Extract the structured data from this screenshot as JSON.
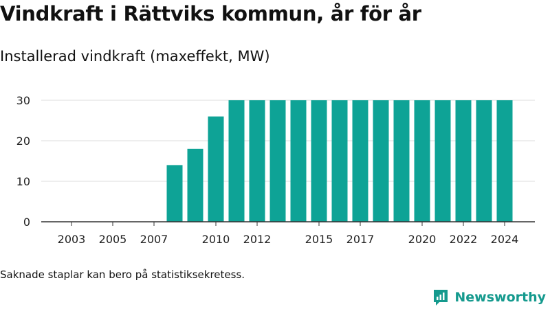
{
  "title": "Vindkraft i Rättviks kommun, år för år",
  "subtitle": "Installerad vindkraft (maxeffekt, MW)",
  "footnote": "Saknade staplar kan bero på statistiksekretess.",
  "brand": {
    "name": "Newsworthy",
    "icon": "newsworthy-logo-icon"
  },
  "colors": {
    "bar": "#0ea396",
    "grid": "#dddddd",
    "axis": "#333333",
    "brand": "#159a8e"
  },
  "chart_data": {
    "type": "bar",
    "categories": [
      "2002",
      "2003",
      "2004",
      "2005",
      "2006",
      "2007",
      "2008",
      "2009",
      "2010",
      "2011",
      "2012",
      "2013",
      "2014",
      "2015",
      "2016",
      "2017",
      "2018",
      "2019",
      "2020",
      "2021",
      "2022",
      "2023",
      "2024"
    ],
    "values": [
      0,
      0,
      0,
      0,
      0,
      0,
      14,
      18,
      26,
      30,
      30,
      30,
      30,
      30,
      30,
      30,
      30,
      30,
      30,
      30,
      30,
      30,
      30
    ],
    "x_tick_labels": [
      "2003",
      "2005",
      "2007",
      "2010",
      "2012",
      "2015",
      "2017",
      "2020",
      "2022",
      "2024"
    ],
    "y_ticks": [
      0,
      10,
      20,
      30
    ],
    "ylim": [
      0,
      30
    ],
    "grid": true,
    "legend": "none",
    "xlabel": "",
    "ylabel": ""
  }
}
